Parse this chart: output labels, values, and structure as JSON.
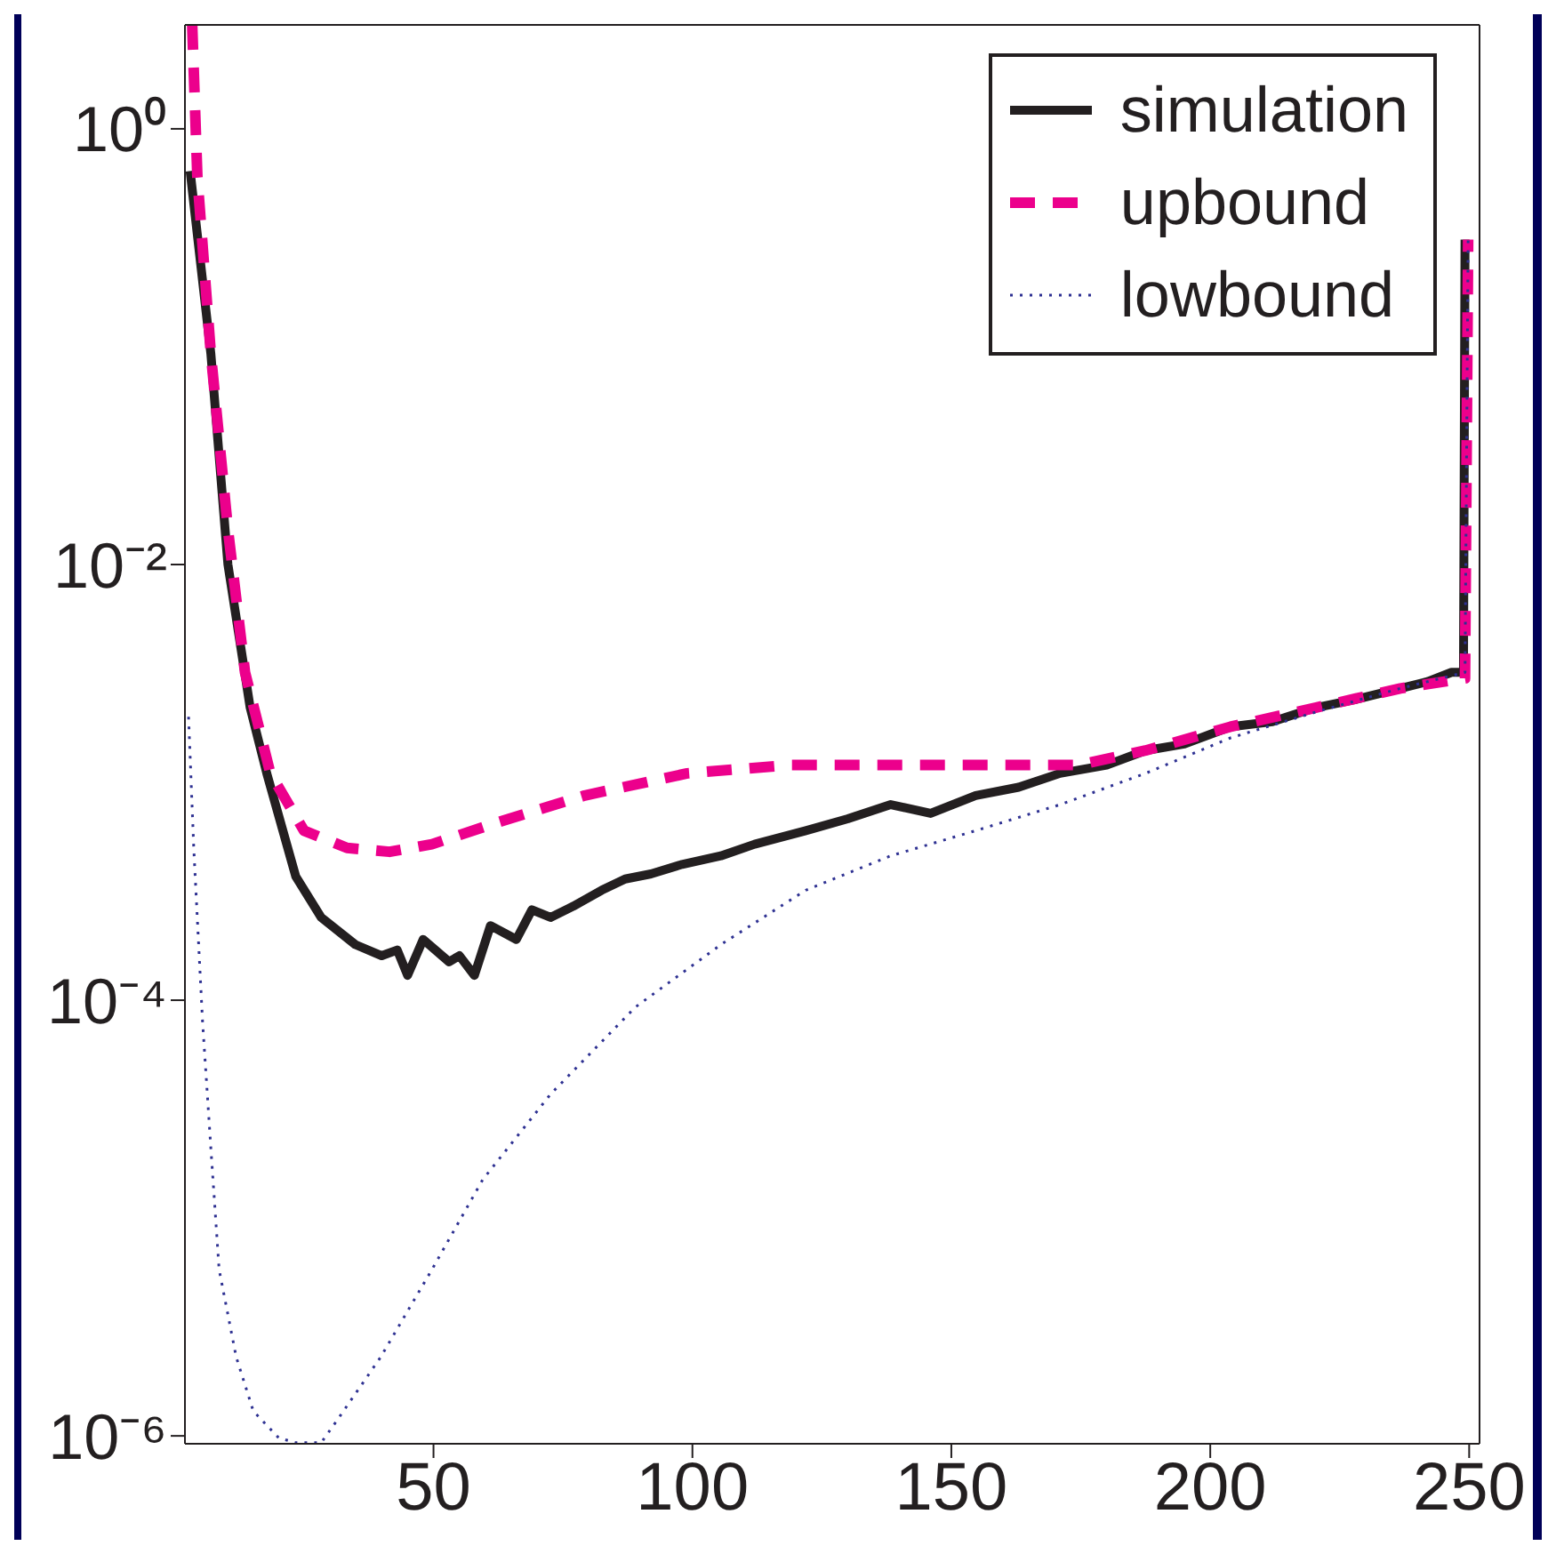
{
  "chart_data": {
    "type": "line",
    "xlim": [
      2,
      252
    ],
    "xticks": [
      50,
      100,
      150,
      200,
      250
    ],
    "ylim": [
      9.2e-07,
      3
    ],
    "yticks": [
      {
        "value": 1,
        "label": "10⁰"
      },
      {
        "value": 0.01,
        "label": "10⁻²"
      },
      {
        "value": 0.0001,
        "label": "10⁻⁴"
      },
      {
        "value": 1e-06,
        "label": "10⁻⁶"
      }
    ],
    "log": "y",
    "grid": false,
    "legend": "top right",
    "series": [
      {
        "name": "simulation",
        "color": "#231f20",
        "line_style": "solid",
        "x": [
          3,
          7,
          10.3,
          14.6,
          17.8,
          23.4,
          28.3,
          34.9,
          40,
          43,
          45,
          48,
          53,
          55,
          57.9,
          61,
          66,
          69,
          72.6,
          77,
          82.5,
          87,
          92,
          98,
          105.5,
          112,
          121.9,
          130,
          138.3,
          146,
          154.7,
          163,
          171,
          180,
          187.5,
          195,
          203.9,
          212,
          220.3,
          228,
          236.7,
          242,
          246.6,
          248.9,
          249.2
        ],
        "values": [
          0.64,
          0.093,
          0.01,
          0.0022,
          0.0011,
          0.00037,
          0.00024,
          0.00018,
          0.00016,
          0.00017,
          0.00013,
          0.00019,
          0.00015,
          0.00016,
          0.00013,
          0.00022,
          0.00019,
          0.00026,
          0.00024,
          0.00027,
          0.00032,
          0.00036,
          0.00038,
          0.00042,
          0.00046,
          0.00052,
          0.0006,
          0.00068,
          0.00079,
          0.00072,
          0.00087,
          0.00095,
          0.0011,
          0.0012,
          0.0014,
          0.0015,
          0.0018,
          0.0019,
          0.0022,
          0.0024,
          0.0027,
          0.0029,
          0.0032,
          0.0032,
          0.31
        ]
      },
      {
        "name": "upbound",
        "color": "#ec008c",
        "line_style": "dashed",
        "x": [
          3.4,
          4.4,
          7,
          10.3,
          13.6,
          18.5,
          25,
          33.3,
          41.5,
          49.7,
          62.8,
          79.2,
          99,
          118.6,
          138.3,
          158,
          174.4,
          187.5,
          203.9,
          220.3,
          236.7,
          249.2,
          249.8
        ],
        "values": [
          3,
          0.6,
          0.093,
          0.0145,
          0.0032,
          0.0011,
          0.0006,
          0.0005,
          0.00048,
          0.00052,
          0.00066,
          0.00087,
          0.0011,
          0.0012,
          0.0012,
          0.0012,
          0.0012,
          0.0014,
          0.0018,
          0.0022,
          0.0027,
          0.003,
          0.31
        ]
      },
      {
        "name": "lowbound",
        "color": "#2e3192",
        "line_style": "dotted",
        "x": [
          2.7,
          3.7,
          5.4,
          7,
          8.6,
          11.9,
          15.2,
          20.1,
          23.4,
          28.3,
          31.6,
          39.8,
          49.7,
          59.5,
          72.6,
          89,
          105.5,
          121.9,
          138.3,
          154.7,
          171,
          187.5,
          203.9,
          220.3,
          236.7,
          249.2,
          249.8
        ],
        "values": [
          0.002,
          0.0005,
          8e-05,
          2.1e-05,
          5.8e-06,
          2.3e-06,
          1.3e-06,
          9.8e-07,
          9.3e-07,
          9.3e-07,
          1.2e-06,
          2.3e-06,
          5.8e-06,
          1.5e-05,
          3.7e-05,
          9.3e-05,
          0.00018,
          0.00032,
          0.00046,
          0.0006,
          0.00079,
          0.0011,
          0.0016,
          0.0021,
          0.0027,
          0.0032,
          0.31
        ]
      }
    ]
  }
}
